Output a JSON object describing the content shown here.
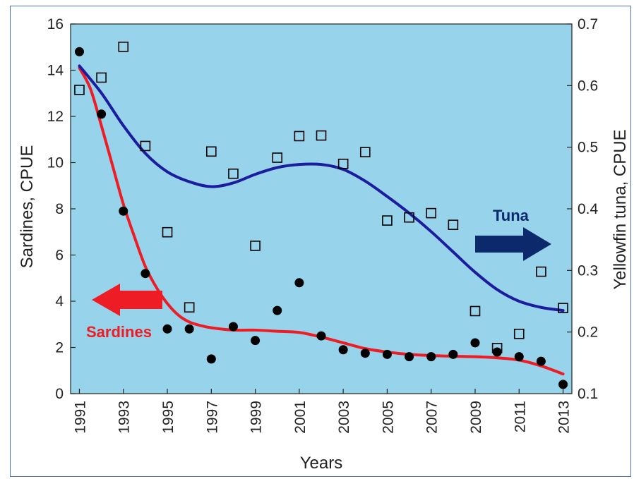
{
  "chart_data": {
    "type": "scatter",
    "xlabel": "Years",
    "ylabel_left": "Sardines, CPUE",
    "ylabel_right": "Yellowfin tuna, CPUE",
    "x_ticks": [
      1991,
      1993,
      1995,
      1997,
      1999,
      2001,
      2003,
      2005,
      2007,
      2009,
      2011,
      2013
    ],
    "xlim": [
      1990.6,
      2013.4
    ],
    "ylim_left": [
      0,
      16
    ],
    "ylim_right": [
      0.1,
      0.7
    ],
    "yticks_left": [
      0,
      2,
      4,
      6,
      8,
      10,
      12,
      14,
      16
    ],
    "yticks_right": [
      "0.1",
      "0.2",
      "0.3",
      "0.4",
      "0.5",
      "0.6",
      "0.7"
    ],
    "plot_bg": "#97d3ea",
    "series": [
      {
        "name": "Sardines",
        "axis": "left",
        "marker": "filled-circle",
        "color": "#000000",
        "x": [
          1991,
          1992,
          1993,
          1994,
          1995,
          1996,
          1997,
          1998,
          1999,
          2000,
          2001,
          2002,
          2003,
          2004,
          2005,
          2006,
          2007,
          2008,
          2009,
          2010,
          2011,
          2012,
          2013
        ],
        "y": [
          14.8,
          12.1,
          7.9,
          5.2,
          2.8,
          2.8,
          1.5,
          2.9,
          2.3,
          3.6,
          4.8,
          2.5,
          1.9,
          1.75,
          1.7,
          1.6,
          1.6,
          1.7,
          2.2,
          1.8,
          1.6,
          1.4,
          0.4
        ]
      },
      {
        "name": "Tuna",
        "axis": "right",
        "marker": "open-square",
        "color": "#000000",
        "x": [
          1991,
          1992,
          1993,
          1994,
          1995,
          1996,
          1997,
          1998,
          1999,
          2000,
          2001,
          2002,
          2003,
          2004,
          2005,
          2006,
          2007,
          2008,
          2009,
          2010,
          2011,
          2012,
          2013
        ],
        "y": [
          0.593,
          0.613,
          0.663,
          0.502,
          0.362,
          0.24,
          0.493,
          0.457,
          0.34,
          0.483,
          0.518,
          0.519,
          0.473,
          0.492,
          0.381,
          0.386,
          0.393,
          0.374,
          0.234,
          0.174,
          0.197,
          0.298,
          0.239
        ]
      }
    ],
    "trend_lines": [
      {
        "name": "Sardines trend",
        "axis": "left",
        "color": "#ee1c24",
        "x": [
          1991,
          1991.5,
          1992,
          1992.5,
          1993,
          1993.5,
          1994,
          1994.5,
          1995,
          1995.5,
          1996,
          1996.5,
          1997,
          1998,
          1999,
          2000,
          2001,
          2002,
          2003,
          2004,
          2005,
          2006,
          2007,
          2008,
          2009,
          2010,
          2011,
          2012,
          2013
        ],
        "y": [
          14.1,
          13.2,
          11.6,
          9.9,
          8.2,
          6.8,
          5.5,
          4.6,
          3.9,
          3.4,
          3.1,
          2.95,
          2.85,
          2.75,
          2.75,
          2.7,
          2.65,
          2.45,
          2.2,
          1.95,
          1.8,
          1.7,
          1.65,
          1.62,
          1.6,
          1.55,
          1.45,
          1.2,
          0.85
        ]
      },
      {
        "name": "Tuna trend",
        "axis": "right",
        "color": "#1c1c9e",
        "x": [
          1991,
          1992,
          1993,
          1994,
          1995,
          1996,
          1997,
          1998,
          1999,
          2000,
          2001,
          2002,
          2003,
          2004,
          2005,
          2006,
          2007,
          2008,
          2009,
          2010,
          2011,
          2012,
          2013
        ],
        "y": [
          0.632,
          0.588,
          0.535,
          0.49,
          0.46,
          0.444,
          0.436,
          0.442,
          0.456,
          0.467,
          0.472,
          0.472,
          0.464,
          0.445,
          0.42,
          0.393,
          0.363,
          0.33,
          0.297,
          0.269,
          0.25,
          0.24,
          0.235
        ]
      }
    ],
    "annotations": {
      "sardines_label": "Sardines",
      "tuna_label": "Tuna",
      "sardines_color": "#ee1c24",
      "tuna_color": "#0c2a6b",
      "sardines_arrow": "left",
      "tuna_arrow": "right"
    }
  }
}
